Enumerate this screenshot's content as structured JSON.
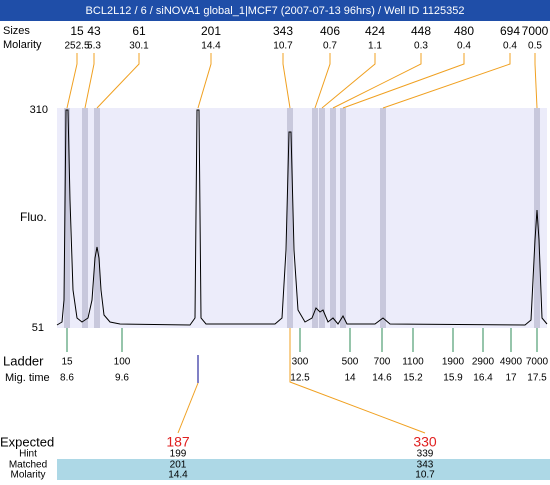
{
  "header": {
    "title": "BCL2L12 / 6 / siNOVA1 global_1|MCF7 (2007-07-13 96hrs) / Well ID 1125352"
  },
  "peaks": {
    "size_label": "Sizes",
    "molarity_label": "Molarity",
    "sizes": [
      15,
      43,
      61,
      201,
      343,
      406,
      424,
      448,
      480,
      694,
      7000
    ],
    "molarity": [
      252.5,
      5.3,
      30.1,
      14.4,
      10.7,
      0.7,
      1.1,
      0.3,
      0.4,
      0.4,
      0.5
    ]
  },
  "axis": {
    "label": "Fluo.",
    "max": 310,
    "min": 51
  },
  "ladder": {
    "label": "Ladder",
    "time_label": "Mig. time",
    "sizes": [
      15,
      100,
      300,
      500,
      700,
      1100,
      1900,
      2900,
      4900,
      7000
    ],
    "times": [
      8.6,
      9.6,
      12.5,
      14,
      14.6,
      15.2,
      15.9,
      16.4,
      17,
      17.5
    ]
  },
  "table": {
    "expected_label": "Expected",
    "hint_label": "Hint",
    "matched_label": "Matched",
    "molarity_label": "Molarity",
    "expected": [
      187,
      330
    ],
    "hint": [
      199,
      339
    ],
    "matched": [
      201,
      343
    ],
    "molarity": [
      14.4,
      10.7
    ]
  }
}
